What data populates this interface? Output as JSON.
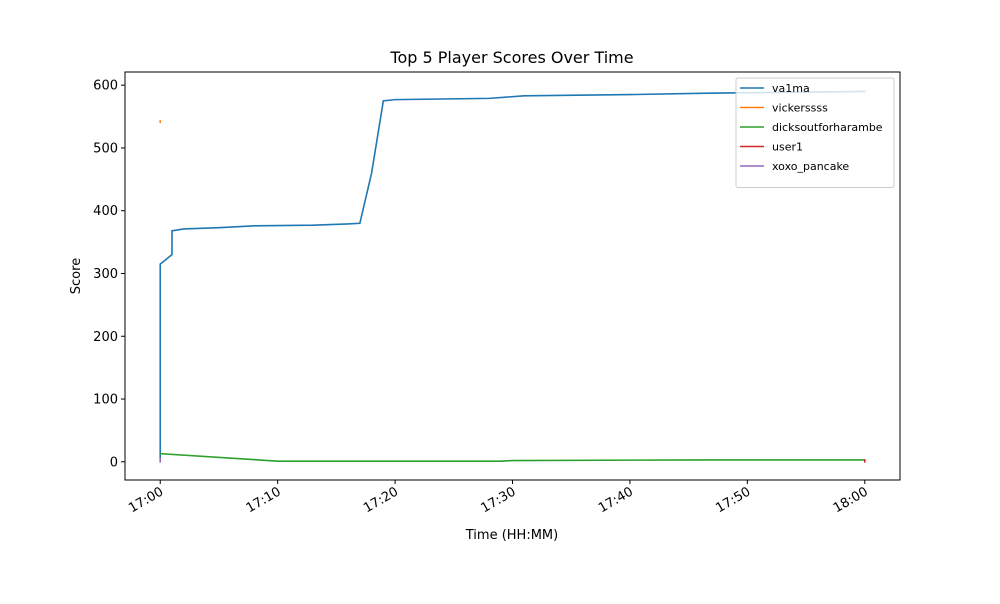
{
  "chart_data": {
    "type": "line",
    "title": "Top 5 Player Scores Over Time",
    "x_label": "Time (HH:MM)",
    "y_label": "Score",
    "xlim": [
      "16:57",
      "18:03"
    ],
    "xticks": [
      "17:00",
      "17:10",
      "17:20",
      "17:30",
      "17:40",
      "17:50",
      "18:00"
    ],
    "ylim": [
      -29,
      621
    ],
    "yticks": [
      0,
      100,
      200,
      300,
      400,
      500,
      600
    ],
    "legend": "upper right",
    "series": [
      {
        "name": "va1ma",
        "color": "#1f77b4",
        "x": [
          "17:00",
          "17:00",
          "17:00",
          "17:01",
          "17:01",
          "17:02",
          "17:05",
          "17:08",
          "17:13",
          "17:16",
          "17:17",
          "17:18",
          "17:19",
          "17:20",
          "17:28",
          "17:31",
          "17:40",
          "17:46",
          "17:50",
          "18:00"
        ],
        "values": [
          5,
          172,
          315,
          330,
          368,
          371,
          373,
          376,
          377,
          379,
          380,
          460,
          575,
          577,
          579,
          583,
          585,
          587,
          588,
          590
        ]
      },
      {
        "name": "vickerssss",
        "color": "#ff7f0e",
        "x": [
          "17:00",
          "17:00"
        ],
        "values": [
          541,
          543
        ]
      },
      {
        "name": "dicksoutforharambe",
        "color": "#2ca02c",
        "x": [
          "17:00",
          "17:10",
          "17:29",
          "17:30",
          "17:46",
          "18:00"
        ],
        "values": [
          13,
          1,
          1,
          2,
          3,
          3
        ]
      },
      {
        "name": "user1",
        "color": "#d62728",
        "x": [
          "18:00",
          "18:00"
        ],
        "values": [
          0,
          3
        ]
      },
      {
        "name": "xoxo_pancake",
        "color": "#9467bd",
        "x": [
          "17:00",
          "17:00"
        ],
        "values": [
          0,
          5
        ]
      }
    ]
  }
}
